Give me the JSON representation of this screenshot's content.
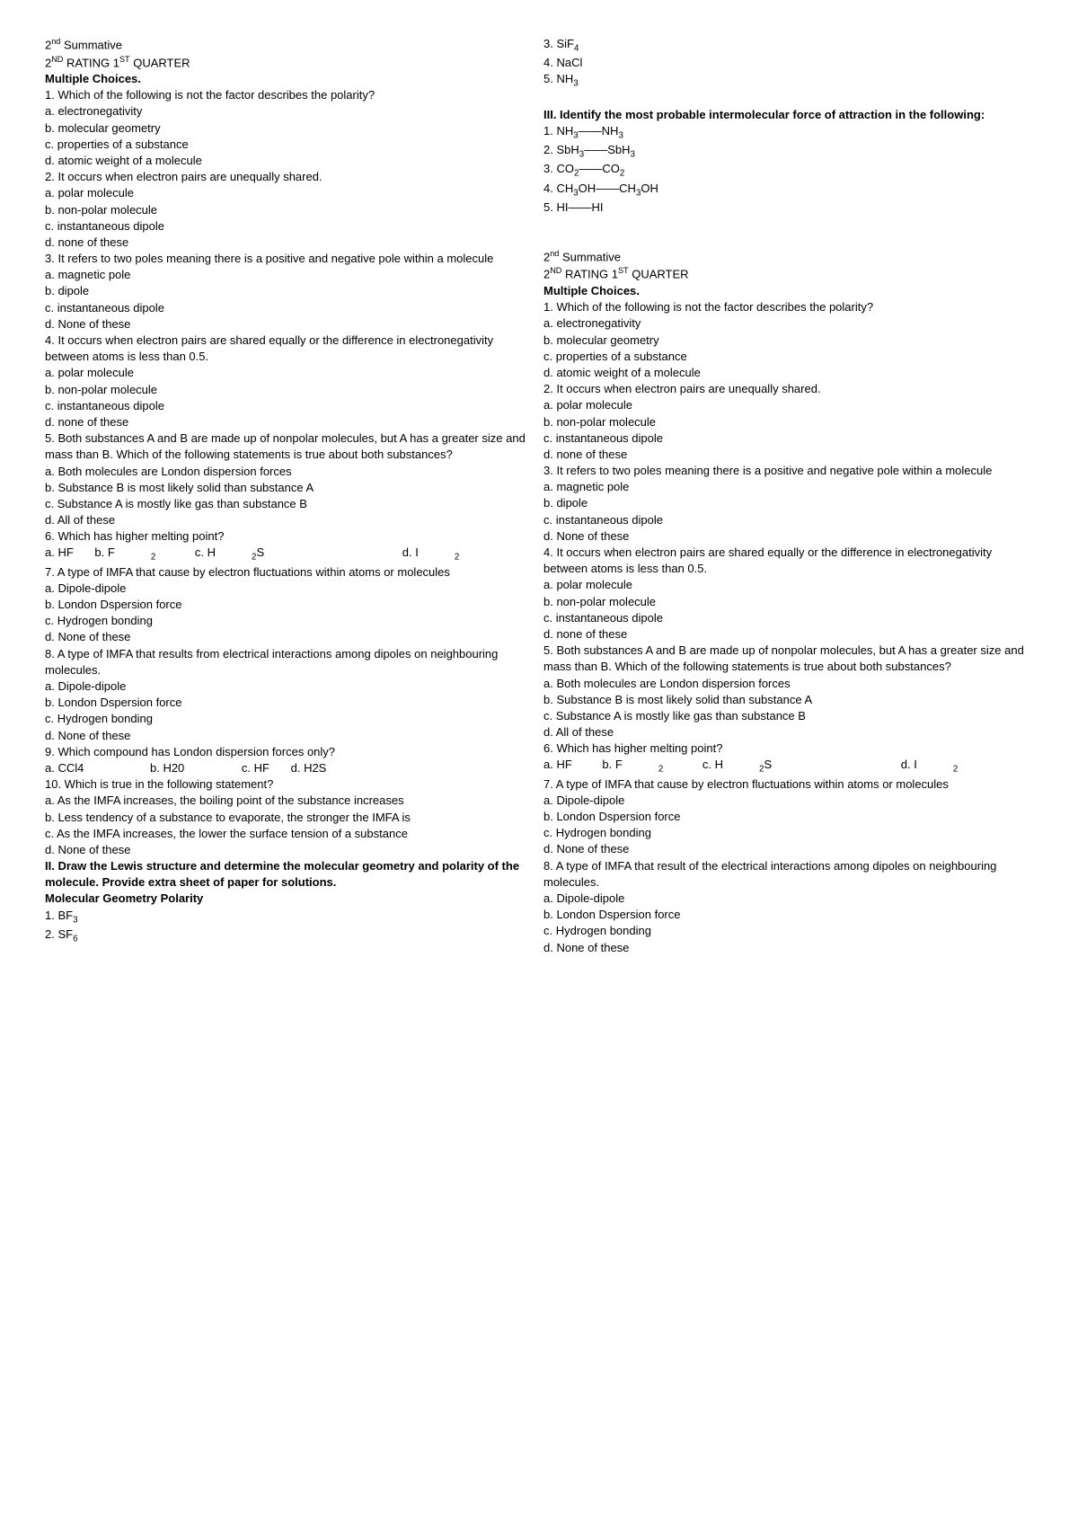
{
  "left": {
    "header1": "2",
    "header1_sup": "nd",
    "header1_rest": "  Summative",
    "header2_a": "2",
    "header2_a_sup": "ND",
    "header2_b": " RATING 1",
    "header2_b_sup": "ST",
    "header2_c": " QUARTER",
    "mc_title": "Multiple Choices.",
    "q1": "1. Which of the following is not the factor describes the polarity?",
    "q1a": "a. electronegativity",
    "q1b": "b. molecular geometry",
    "q1c": "c. properties of a substance",
    "q1d": "d. atomic weight of a molecule",
    "q2": "2. It occurs when electron pairs are unequally shared.",
    "q2a": "a. polar molecule",
    "q2b": "b. non-polar molecule",
    "q2c": "c. instantaneous dipole",
    "q2d": "d. none of these",
    "q3": "3. It refers to two poles meaning there is a positive and negative pole within a molecule",
    "q3a": "a. magnetic pole",
    "q3b": "b. dipole",
    "q3c": "c. instantaneous dipole",
    "q3d": "d. None of these",
    "q4": "4. It occurs when electron pairs are shared equally or the difference in electronegativity between atoms is less than 0.5.",
    "q4a": "a. polar molecule",
    "q4b": "b. non-polar molecule",
    "q4c": "c. instantaneous dipole",
    "q4d": "d. none of these",
    "q5": "5. Both substances A and B are made up of nonpolar molecules, but A has a greater size and mass than B. Which of the following statements is true about both substances?",
    "q5a": "a. Both molecules are London dispersion forces",
    "q5b": "b. Substance B is most likely solid than substance A",
    "q5c": "c. Substance A is mostly like gas than substance B",
    "q5d": "d. All of these",
    "q6": "6. Which has higher melting point?",
    "q6a": "a. HF",
    "q6b_pre": "b. F",
    "q6b_sub": "2",
    "q6c_pre": "c. H",
    "q6c_sub": "2",
    "q6c_post": "S",
    "q6d_pre": "d. I",
    "q6d_sub": "2",
    "q7": "7. A type of IMFA that cause by electron fluctuations within atoms or molecules",
    "q7a": "a. Dipole-dipole",
    "q7b": "b. London Dspersion force",
    "q7c": "c. Hydrogen bonding",
    "q7d": "d. None of these",
    "q8": "8. A type of IMFA that results from electrical interactions among dipoles on neighbouring molecules.",
    "q8a": "a. Dipole-dipole",
    "q8b": "b. London Dspersion force",
    "q8c": "c. Hydrogen bonding",
    "q8d": "d. None of these",
    "q9": "9. Which compound has London dispersion forces only?",
    "q9a": "a. CCl4",
    "q9b": "b. H20",
    "q9c": "c. HF",
    "q9d": "d. H2S",
    "q10": "10. Which is true in the following statement?",
    "q10a": "a. As the IMFA increases, the boiling point of the substance increases",
    "q10b": "b. Less tendency of a substance to evaporate, the stronger the IMFA is",
    "q10c": "c. As the IMFA increases, the lower the surface tension of a substance",
    "q10d": "d. None of these",
    "sec2_title": "II. Draw the Lewis structure and determine the molecular geometry and polarity of the molecule. Provide extra sheet of paper for solutions.",
    "sec2_sub": "Molecular Geometry  Polarity",
    "sec2_1_pre": "1. BF",
    "sec2_1_sub": "3",
    "sec2_2_pre": "2. SF",
    "sec2_2_sub": "6"
  },
  "right": {
    "sec2_3_pre": "3. SiF",
    "sec2_3_sub": "4",
    "sec2_4": "4. NaCl",
    "sec2_5_pre": "5. NH",
    "sec2_5_sub": "3",
    "sec3_title": "III. Identify the most probable intermolecular force of attraction in the following:",
    "sec3_1_a": "1. NH",
    "sec3_1_a_sub": "3",
    "sec3_1_mid": "——NH",
    "sec3_1_b_sub": "3",
    "sec3_2_a": "2. SbH",
    "sec3_2_a_sub": "3",
    "sec3_2_mid": "——SbH",
    "sec3_2_b_sub": "3",
    "sec3_3_a": "3. CO",
    "sec3_3_a_sub": "2",
    "sec3_3_mid": "——CO",
    "sec3_3_b_sub": "2",
    "sec3_4_a": "4. CH",
    "sec3_4_a_sub": "3",
    "sec3_4_mid": "OH——CH",
    "sec3_4_b_sub": "3",
    "sec3_4_end": "OH",
    "sec3_5": "5. HI——HI",
    "header1": "2",
    "header1_sup": "nd",
    "header1_rest": "  Summative",
    "header2_a": "2",
    "header2_a_sup": "ND",
    "header2_b": " RATING 1",
    "header2_b_sup": "ST",
    "header2_c": " QUARTER",
    "mc_title": "Multiple Choices.",
    "q1": "1. Which of the following is not the factor describes the polarity?",
    "q1a": "a. electronegativity",
    "q1b": "b. molecular geometry",
    "q1c": "c. properties of a substance",
    "q1d": "d. atomic weight of a molecule",
    "q2": "2. It occurs when electron pairs are unequally shared.",
    "q2a": "a. polar molecule",
    "q2b": "b. non-polar molecule",
    "q2c": "c. instantaneous dipole",
    "q2d": "d. none of these",
    "q3": "3. It refers to two poles meaning there is a positive and negative pole within a molecule",
    "q3a": "a. magnetic pole",
    "q3b": "b. dipole",
    "q3c": "c. instantaneous dipole",
    "q3d": "d. None of these",
    "q4": "4. It occurs when electron pairs are shared equally or the difference in electronegativity between atoms is less than 0.5.",
    "q4a": "a. polar molecule",
    "q4b": "b. non-polar molecule",
    "q4c": "c. instantaneous dipole",
    "q4d": "d. none of these",
    "q5": "5. Both substances A and B are made up of nonpolar molecules, but A has a greater size and mass than B. Which of the following statements is true about both substances?",
    "q5a": "a. Both molecules are London dispersion forces",
    "q5b": "b. Substance B is most likely solid than substance A",
    "q5c": "c. Substance A is mostly like gas than substance B",
    "q5d": "d. All of these",
    "q6": "6. Which has higher melting point?",
    "q6a": "a. HF",
    "q6b_pre": "b. F",
    "q6b_sub": "2",
    "q6c_pre": "c. H",
    "q6c_sub": "2",
    "q6c_post": "S",
    "q6d_pre": "d. I",
    "q6d_sub": "2",
    "q7": "7. A type of IMFA that cause by electron fluctuations within atoms or molecules",
    "q7a": "a. Dipole-dipole",
    "q7b": "b. London Dspersion force",
    "q7c": "c. Hydrogen bonding",
    "q7d": "d. None of these",
    "q8": "8. A type of IMFA that result of the electrical interactions among dipoles on neighbouring molecules.",
    "q8a": "a. Dipole-dipole",
    "q8b": "b. London Dspersion force",
    "q8c": "c. Hydrogen bonding",
    "q8d": "d. None of these"
  }
}
